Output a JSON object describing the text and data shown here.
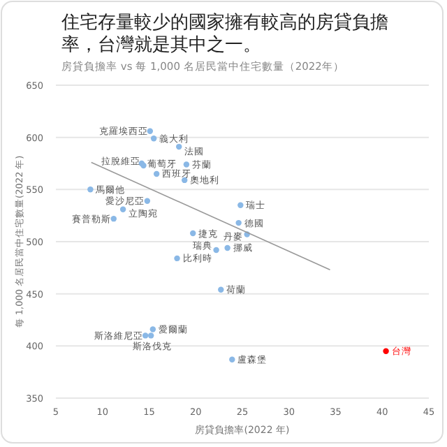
{
  "chart_data": {
    "type": "scatter",
    "title": "住宅存量較少的國家擁有較高的房貸負擔率，台灣就是其中之一。",
    "subtitle": "房貸負擔率 vs 每 1,000 名居民當中住宅數量（2022年）",
    "xlabel": "房貸負擔率(2022 年)",
    "ylabel": "每 1,000 名居民當中住宅數量(2022 年)",
    "xlim": [
      5,
      45
    ],
    "xticks": [
      5,
      10,
      15,
      20,
      25,
      30,
      35,
      40,
      45
    ],
    "ylim": [
      350,
      650
    ],
    "yticks": [
      350,
      400,
      450,
      500,
      550,
      600,
      650
    ],
    "grid": "y",
    "marker": "circle",
    "series": [
      {
        "x": [
          15.1,
          15.5,
          18.2,
          19.0,
          14.2,
          14.4,
          15.8,
          18.8,
          8.7,
          14.8,
          12.2,
          11.2,
          19.7,
          18.0,
          22.2,
          23.4,
          24.8,
          24.6,
          25.5,
          22.7,
          15.4,
          15.2,
          14.6,
          23.9,
          40.4
        ],
        "values": [
          606,
          599,
          591,
          574,
          575,
          573,
          565,
          559,
          550,
          539,
          531,
          522,
          508,
          484,
          492,
          494,
          535,
          518,
          507,
          454,
          416,
          410,
          410,
          387,
          395
        ],
        "colors": [
          "#8ab8e6",
          "#8ab8e6",
          "#8ab8e6",
          "#8ab8e6",
          "#8ab8e6",
          "#8ab8e6",
          "#8ab8e6",
          "#8ab8e6",
          "#8ab8e6",
          "#8ab8e6",
          "#8ab8e6",
          "#8ab8e6",
          "#8ab8e6",
          "#8ab8e6",
          "#8ab8e6",
          "#8ab8e6",
          "#8ab8e6",
          "#8ab8e6",
          "#8ab8e6",
          "#8ab8e6",
          "#8ab8e6",
          "#8ab8e6",
          "#8ab8e6",
          "#8ab8e6",
          "#ff0000"
        ]
      },
      {
        "type": "line",
        "marker": "none",
        "color": "#999999",
        "x": [
          8.8,
          34.4
        ],
        "values": [
          576,
          473
        ]
      }
    ],
    "annotations": [
      {
        "text": "克羅埃西亞",
        "x": 15.1,
        "y": 606
      },
      {
        "text": "義大利",
        "x": 15.5,
        "y": 599
      },
      {
        "text": "法國",
        "x": 18.2,
        "y": 591
      },
      {
        "text": "芬蘭",
        "x": 19.0,
        "y": 574
      },
      {
        "text": "葡萄牙",
        "x": 14.2,
        "y": 575
      },
      {
        "text": "拉脫維亞",
        "x": 14.4,
        "y": 573
      },
      {
        "text": "西班牙",
        "x": 15.8,
        "y": 565
      },
      {
        "text": "奧地利",
        "x": 18.8,
        "y": 559
      },
      {
        "text": "馬爾他",
        "x": 8.7,
        "y": 550
      },
      {
        "text": "愛沙尼亞",
        "x": 14.8,
        "y": 539
      },
      {
        "text": "立陶宛",
        "x": 12.2,
        "y": 531
      },
      {
        "text": "賽普勒斯",
        "x": 11.2,
        "y": 522
      },
      {
        "text": "捷克",
        "x": 19.7,
        "y": 508
      },
      {
        "text": "比利時",
        "x": 18.0,
        "y": 484
      },
      {
        "text": "瑞典",
        "x": 22.2,
        "y": 492
      },
      {
        "text": "挪威",
        "x": 23.4,
        "y": 494
      },
      {
        "text": "瑞士",
        "x": 24.8,
        "y": 535
      },
      {
        "text": "德國",
        "x": 24.6,
        "y": 518
      },
      {
        "text": "丹麥",
        "x": 25.5,
        "y": 507
      },
      {
        "text": "荷蘭",
        "x": 22.7,
        "y": 454
      },
      {
        "text": "愛爾蘭",
        "x": 15.4,
        "y": 416
      },
      {
        "text": "斯洛伐克",
        "x": 15.2,
        "y": 410
      },
      {
        "text": "斯洛維尼亞",
        "x": 14.6,
        "y": 410
      },
      {
        "text": "盧森堡",
        "x": 23.9,
        "y": 387
      },
      {
        "text": "台灣",
        "x": 40.4,
        "y": 395
      }
    ]
  }
}
